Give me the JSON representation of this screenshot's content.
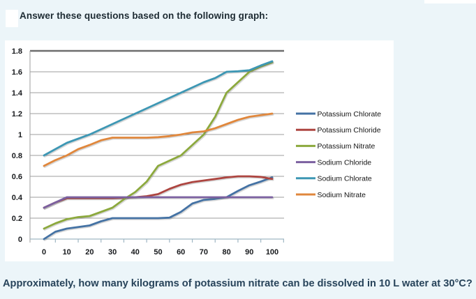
{
  "page": {
    "background_color": "#ecf5f9",
    "title": "Answer these questions based on the following graph:",
    "question": "Approximately, how many kilograms of potassium nitrate can be dissolved in 10 L water at 30°C?"
  },
  "chart_data": {
    "type": "line",
    "title": "",
    "xlabel": "",
    "ylabel": "",
    "xlim": [
      0,
      100
    ],
    "ylim": [
      0,
      1.8
    ],
    "grid": true,
    "legend_position": "right",
    "x": [
      0,
      5,
      10,
      15,
      20,
      25,
      30,
      35,
      40,
      45,
      50,
      55,
      60,
      65,
      70,
      75,
      80,
      85,
      90,
      95,
      100
    ],
    "x_ticks": [
      0,
      10,
      20,
      30,
      40,
      50,
      60,
      70,
      80,
      90,
      100
    ],
    "y_ticks": [
      0,
      0.2,
      0.4,
      0.6,
      0.8,
      1,
      1.2,
      1.4,
      1.6,
      1.8
    ],
    "y_tick_labels": [
      "0",
      "0.2",
      "0.4",
      "0.6",
      "0.8",
      "1",
      "1.2",
      "1.4",
      "1.6",
      "1.8"
    ],
    "colors": {
      "gridline": "#9d9d9d",
      "top_gridline": "#6e6e6e",
      "x_axis": "#9fb6c4",
      "y_axis": "#9d9d9d",
      "plot_background": "#ffffff"
    },
    "series": [
      {
        "name": "Potassium Chlorate",
        "color": "#4472a4",
        "values": [
          0,
          0.07,
          0.1,
          0.115,
          0.13,
          0.17,
          0.2,
          0.2,
          0.2,
          0.2,
          0.2,
          0.205,
          0.26,
          0.34,
          0.375,
          0.385,
          0.4,
          0.46,
          0.515,
          0.55,
          0.59
        ]
      },
      {
        "name": "Potassium Chloride",
        "color": "#ad4540",
        "values": [
          0.3,
          0.35,
          0.39,
          0.39,
          0.39,
          0.39,
          0.39,
          0.395,
          0.4,
          0.41,
          0.43,
          0.48,
          0.52,
          0.545,
          0.56,
          0.575,
          0.59,
          0.6,
          0.6,
          0.595,
          0.575
        ]
      },
      {
        "name": "Potassium Nitrate",
        "color": "#8ca93d",
        "values": [
          0.1,
          0.15,
          0.19,
          0.21,
          0.22,
          0.26,
          0.3,
          0.38,
          0.45,
          0.55,
          0.7,
          0.75,
          0.8,
          0.9,
          1.0,
          1.17,
          1.4,
          1.5,
          1.6,
          1.65,
          1.69
        ]
      },
      {
        "name": "Sodium Chloride",
        "color": "#7b60a0",
        "values": [
          0.3,
          0.35,
          0.4,
          0.4,
          0.4,
          0.4,
          0.4,
          0.4,
          0.4,
          0.4,
          0.4,
          0.4,
          0.4,
          0.4,
          0.4,
          0.4,
          0.4,
          0.4,
          0.4,
          0.4,
          0.4
        ]
      },
      {
        "name": "Sodium Chlorate",
        "color": "#3d97b4",
        "values": [
          0.8,
          0.86,
          0.92,
          0.96,
          1.0,
          1.05,
          1.1,
          1.15,
          1.2,
          1.25,
          1.3,
          1.35,
          1.4,
          1.45,
          1.5,
          1.54,
          1.6,
          1.605,
          1.615,
          1.66,
          1.7
        ]
      },
      {
        "name": "Sodium Nitrate",
        "color": "#e0873c",
        "values": [
          0.7,
          0.755,
          0.8,
          0.86,
          0.9,
          0.945,
          0.97,
          0.97,
          0.97,
          0.97,
          0.975,
          0.985,
          1.0,
          1.02,
          1.03,
          1.06,
          1.1,
          1.14,
          1.17,
          1.185,
          1.2
        ]
      }
    ]
  }
}
